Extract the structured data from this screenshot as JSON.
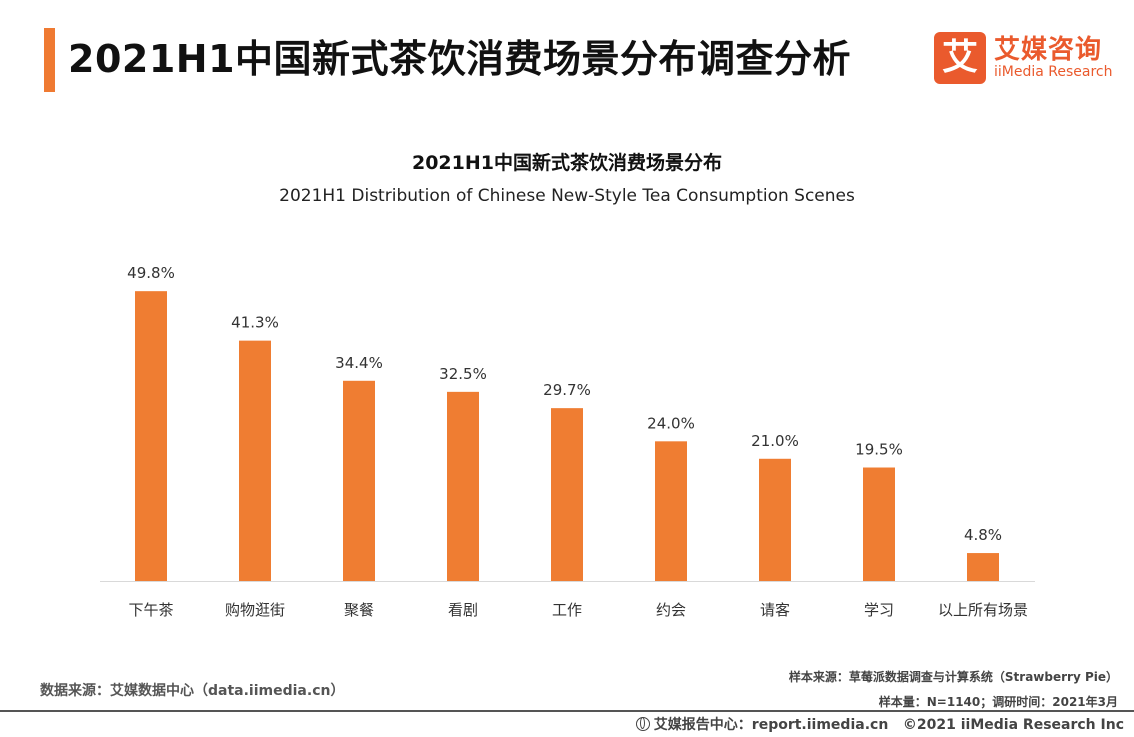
{
  "header": {
    "title": "2021H1中国新式茶饮消费场景分布调查分析"
  },
  "logo": {
    "mark": "艾",
    "name_cn": "艾媒咨询",
    "name_en": "iiMedia Research",
    "color": "#ea5a2d"
  },
  "chart_data": {
    "type": "bar",
    "title": "2021H1中国新式茶饮消费场景分布",
    "subtitle": "2021H1 Distribution of Chinese New-Style Tea Consumption Scenes",
    "categories": [
      "下午茶",
      "购物逛街",
      "聚餐",
      "看剧",
      "工作",
      "约会",
      "请客",
      "学习",
      "以上所有场景"
    ],
    "values": [
      49.8,
      41.3,
      34.4,
      32.5,
      29.7,
      24.0,
      21.0,
      19.5,
      4.8
    ],
    "data_labels": [
      "49.8%",
      "41.3%",
      "34.4%",
      "32.5%",
      "29.7%",
      "24.0%",
      "21.0%",
      "19.5%",
      "4.8%"
    ],
    "unit": "%",
    "ylim": [
      0,
      50
    ],
    "grid": false,
    "legend": "none",
    "bar_color": "#ef7d32"
  },
  "footer": {
    "source": "数据来源：艾媒数据中心（data.iimedia.cn）",
    "sample_source": "样本来源：草莓派数据调查与计算系统（Strawberry Pie）",
    "sample_info": "样本量：N=1140；调研时间：2021年3月",
    "report_center": "艾媒报告中心：report.iimedia.cn",
    "copyright": "©2021  iiMedia Research  Inc"
  },
  "colors": {
    "accent": "#ef7a32"
  }
}
